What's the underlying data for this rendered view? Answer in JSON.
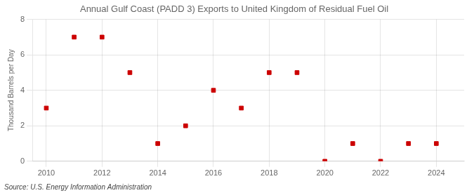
{
  "chart_data": {
    "type": "scatter",
    "title": "Annual Gulf Coast (PADD 3) Exports to United Kingdom of Residual Fuel Oil",
    "ylabel": "Thousand Barrels per Day",
    "annotation": "Source: U.S. Energy Information Administration",
    "x": [
      2010,
      2011,
      2012,
      2013,
      2014,
      2015,
      2016,
      2017,
      2018,
      2019,
      2020,
      2021,
      2022,
      2023,
      2024
    ],
    "values": [
      3,
      7,
      7,
      5,
      1,
      2,
      4,
      3,
      5,
      5,
      0,
      1,
      0,
      1,
      1
    ],
    "color": "#cc0000",
    "marker": "square",
    "xlim": [
      2009.5,
      2025
    ],
    "xticks": [
      2010,
      2012,
      2014,
      2016,
      2018,
      2020,
      2022,
      2024
    ],
    "ylim": [
      0,
      8
    ],
    "yticks": [
      0,
      2,
      4,
      6,
      8
    ],
    "grid": true
  }
}
